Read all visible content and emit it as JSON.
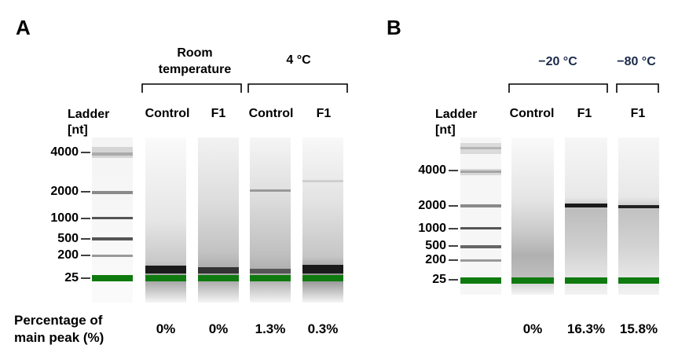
{
  "panel_a": {
    "letter": "A",
    "ladder_label_1": "Ladder",
    "ladder_label_2": "[nt]",
    "group_room_line1": "Room",
    "group_room_line2": "temperature",
    "group_4c": "4 °C",
    "lane_labels": [
      "Control",
      "F1",
      "Control",
      "F1"
    ],
    "ladder_ticks": [
      "4000",
      "2000",
      "1000",
      "500",
      "200",
      "25"
    ],
    "percentages": [
      "0%",
      "0%",
      "1.3%",
      "0.3%"
    ]
  },
  "panel_b": {
    "letter": "B",
    "ladder_label_1": "Ladder",
    "ladder_label_2": "[nt]",
    "group_m20": "−20 °C",
    "group_m80": "−80 °C",
    "lane_labels": [
      "Control",
      "F1",
      "F1"
    ],
    "ladder_ticks": [
      "4000",
      "2000",
      "1000",
      "500",
      "200",
      "25"
    ],
    "percentages": [
      "0%",
      "16.3%",
      "15.8%"
    ]
  },
  "footer": {
    "percentage_label_1": "Percentage of",
    "percentage_label_2": "main peak (%)"
  },
  "colors": {
    "marker_green": "#0f7a0f",
    "band_dark": "#1a1a1a"
  }
}
